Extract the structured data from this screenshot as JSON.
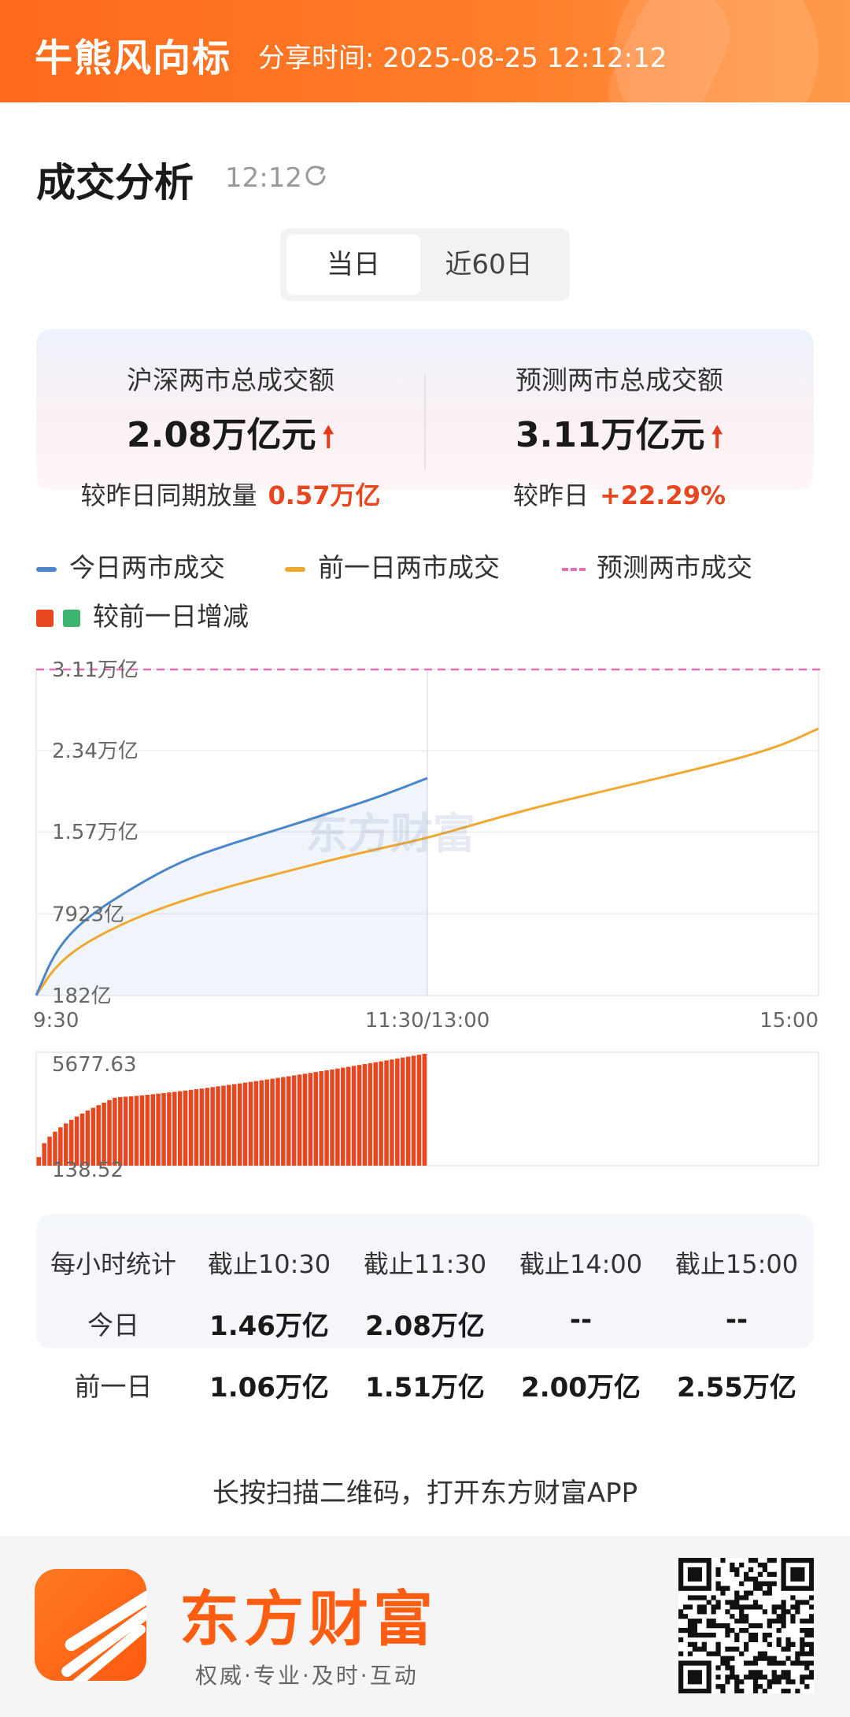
{
  "header": {
    "brand": "牛熊风向标",
    "share_time": "分享时间: 2025-08-25 12:12:12"
  },
  "section": {
    "title": "成交分析",
    "time": "12:12",
    "refresh_icon": "refresh-icon"
  },
  "tabs": [
    {
      "label": "当日",
      "active": true
    },
    {
      "label": "近60日",
      "active": false
    }
  ],
  "summary": {
    "left": {
      "label": "沪深两市总成交额",
      "value": "2.08万亿元",
      "arrow": "🠕",
      "sub_label": "较昨日同期放量",
      "sub_value": "0.57万亿"
    },
    "right": {
      "label": "预测两市总成交额",
      "value": "3.11万亿元",
      "arrow": "🠕",
      "sub_label": "较昨日",
      "sub_value": "+22.29%"
    }
  },
  "legend": {
    "today": "今日两市成交",
    "prev": "前一日两市成交",
    "forecast": "预测两市成交",
    "diff": "较前一日增减"
  },
  "colors": {
    "today": "#4a86c8",
    "prev": "#f0a830",
    "forecast": "#e870b0",
    "up": "#e8461e",
    "down": "#3cb46e",
    "accent": "#ff6a1a"
  },
  "chart_data": [
    {
      "type": "line",
      "x_ticks": [
        "9:30",
        "11:30/13:00",
        "15:00"
      ],
      "y_ticks": [
        "182亿",
        "7923亿",
        "1.57万亿",
        "2.34万亿",
        "3.11万亿"
      ],
      "y_tick_values": [
        0.0182,
        0.7923,
        1.57,
        2.34,
        3.11
      ],
      "ylim": [
        0.0182,
        3.11
      ],
      "forecast_value": 3.11,
      "series": [
        {
          "name": "今日两市成交",
          "x": [
            0,
            0.1,
            0.25,
            0.5,
            0.75,
            1.0,
            1.25,
            1.5,
            1.75,
            2.0
          ],
          "values": [
            0.02,
            0.45,
            0.75,
            1.05,
            1.3,
            1.46,
            1.6,
            1.75,
            1.9,
            2.08
          ]
        },
        {
          "name": "前一日两市成交",
          "x": [
            0,
            0.1,
            0.25,
            0.5,
            0.75,
            1.0,
            1.25,
            1.5,
            1.75,
            2.0,
            2.5,
            3.0,
            3.5,
            3.8,
            4.0
          ],
          "values": [
            0.02,
            0.3,
            0.52,
            0.75,
            0.92,
            1.06,
            1.18,
            1.3,
            1.41,
            1.51,
            1.78,
            2.0,
            2.22,
            2.38,
            2.55
          ]
        },
        {
          "name": "预测两市成交",
          "x": [
            0,
            4.0
          ],
          "values": [
            3.11,
            3.11
          ]
        }
      ]
    },
    {
      "type": "bar",
      "name": "较前一日增减",
      "y_ticks": [
        "5677.63",
        "138.52"
      ],
      "ylim": [
        138.52,
        5677.63
      ],
      "bar_count": 72,
      "values_start": 138.52,
      "values_end": 5677.63
    }
  ],
  "hourly": {
    "headers": [
      "每小时统计",
      "截止10:30",
      "截止11:30",
      "截止14:00",
      "截止15:00"
    ],
    "rows": [
      {
        "label": "今日",
        "values": [
          "1.46万亿",
          "2.08万亿",
          "--",
          "--"
        ]
      },
      {
        "label": "前一日",
        "values": [
          "1.06万亿",
          "1.51万亿",
          "2.00万亿",
          "2.55万亿"
        ]
      }
    ]
  },
  "scan_tip": "长按扫描二维码，打开东方财富APP",
  "footer": {
    "brand": "东方财富",
    "slogan": "权威·专业·及时·互动",
    "watermark": "东方财富"
  }
}
